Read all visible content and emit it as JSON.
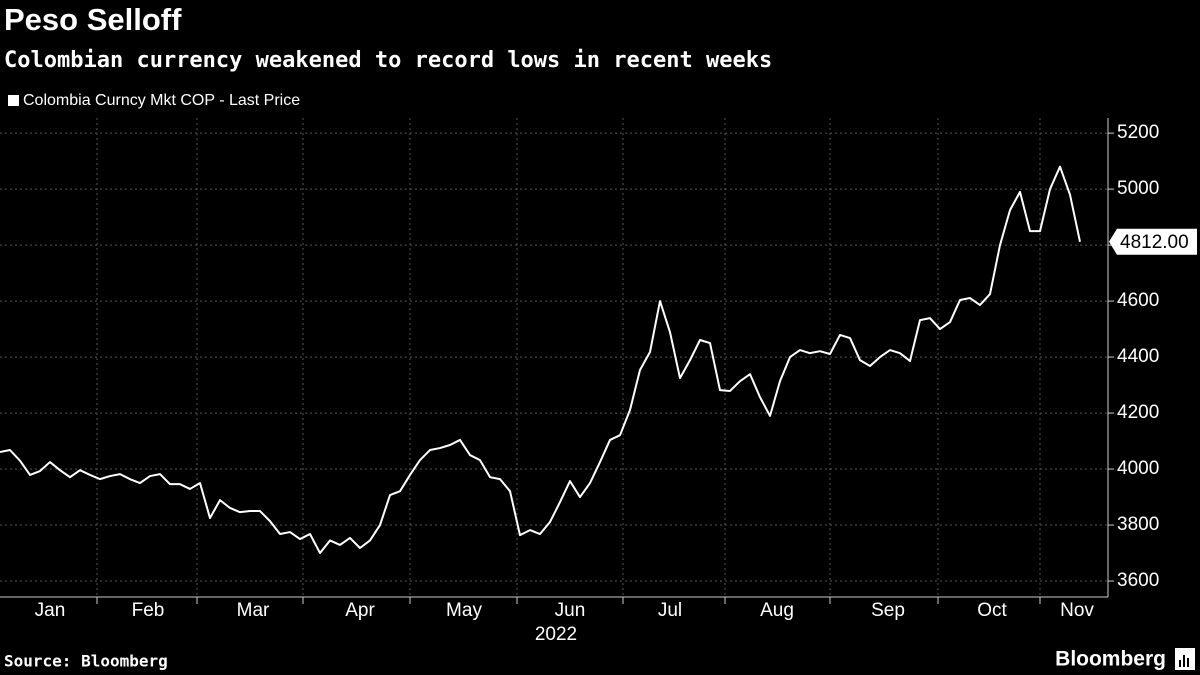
{
  "chart_data": {
    "type": "line",
    "title": "Peso Selloff",
    "subtitle": "Colombian currency weakened to record lows in recent weeks",
    "source": "Source: Bloomberg",
    "brand": "Bloomberg",
    "year_label": "2022",
    "series": [
      {
        "name": "Colombia Curncy Mkt COP - Last Price",
        "color": "#ffffff",
        "values": [
          4061,
          4068,
          4030,
          3979,
          3993,
          4025,
          3996,
          3971,
          3996,
          3979,
          3964,
          3975,
          3982,
          3964,
          3950,
          3975,
          3982,
          3946,
          3946,
          3929,
          3950,
          3825,
          3889,
          3861,
          3846,
          3850,
          3850,
          3814,
          3768,
          3775,
          3750,
          3768,
          3700,
          3745,
          3729,
          3754,
          3718,
          3745,
          3800,
          3907,
          3921,
          3979,
          4032,
          4068,
          4075,
          4086,
          4104,
          4050,
          4032,
          3971,
          3964,
          3921,
          3764,
          3782,
          3768,
          3811,
          3882,
          3957,
          3900,
          3950,
          4025,
          4104,
          4121,
          4211,
          4354,
          4418,
          4600,
          4489,
          4325,
          4389,
          4461,
          4450,
          4282,
          4279,
          4314,
          4339,
          4257,
          4190,
          4314,
          4400,
          4425,
          4414,
          4421,
          4411,
          4479,
          4468,
          4389,
          4368,
          4400,
          4425,
          4414,
          4386,
          4532,
          4539,
          4500,
          4525,
          4604,
          4611,
          4586,
          4625,
          4800,
          4925,
          4990,
          4850,
          4850,
          5000,
          5080,
          4980,
          4812
        ],
        "value_labels": [
          null,
          null,
          null,
          null,
          null,
          null,
          null,
          null,
          null,
          null,
          null,
          null,
          null,
          null,
          null,
          null,
          null,
          null,
          null,
          null,
          null,
          null,
          null,
          null,
          null,
          null,
          null,
          null,
          null,
          null,
          null,
          null,
          null,
          null,
          null,
          null,
          null,
          null,
          null,
          null,
          null,
          null,
          null,
          null,
          null,
          null,
          null,
          null,
          null,
          null,
          null,
          null,
          null,
          null,
          null,
          null,
          null,
          null,
          null,
          null,
          null,
          null,
          null,
          null,
          null,
          null,
          null,
          null,
          null,
          null,
          null,
          null,
          null,
          null,
          null,
          null,
          null,
          null,
          null,
          null,
          null,
          null,
          null,
          null,
          null,
          null,
          null,
          null,
          null,
          null,
          null,
          null,
          null,
          null,
          null,
          null,
          null,
          null,
          null,
          null,
          null,
          null,
          null,
          null,
          null,
          null,
          null,
          null,
          "4812.00"
        ]
      }
    ],
    "xlim": [
      0,
      110.8
    ],
    "xticks": [
      {
        "value": 5,
        "label": "Jan"
      },
      {
        "value": 14.8,
        "label": "Feb"
      },
      {
        "value": 25.3,
        "label": "Mar"
      },
      {
        "value": 36,
        "label": "Apr"
      },
      {
        "value": 46.4,
        "label": "May"
      },
      {
        "value": 57,
        "label": "Jun"
      },
      {
        "value": 67,
        "label": "Jul"
      },
      {
        "value": 77.7,
        "label": "Aug"
      },
      {
        "value": 88.8,
        "label": "Sep"
      },
      {
        "value": 99.2,
        "label": "Oct"
      },
      {
        "value": 107.7,
        "label": "Nov"
      }
    ],
    "xgrid": [
      9.7,
      19.7,
      30.3,
      41,
      51.7,
      62.3,
      72.5,
      83,
      93.8,
      104
    ],
    "ylim": [
      3543,
      5254
    ],
    "yticks": [
      3600,
      3800,
      4000,
      4200,
      4400,
      4600,
      4800,
      5000,
      5200
    ],
    "grid": true
  }
}
